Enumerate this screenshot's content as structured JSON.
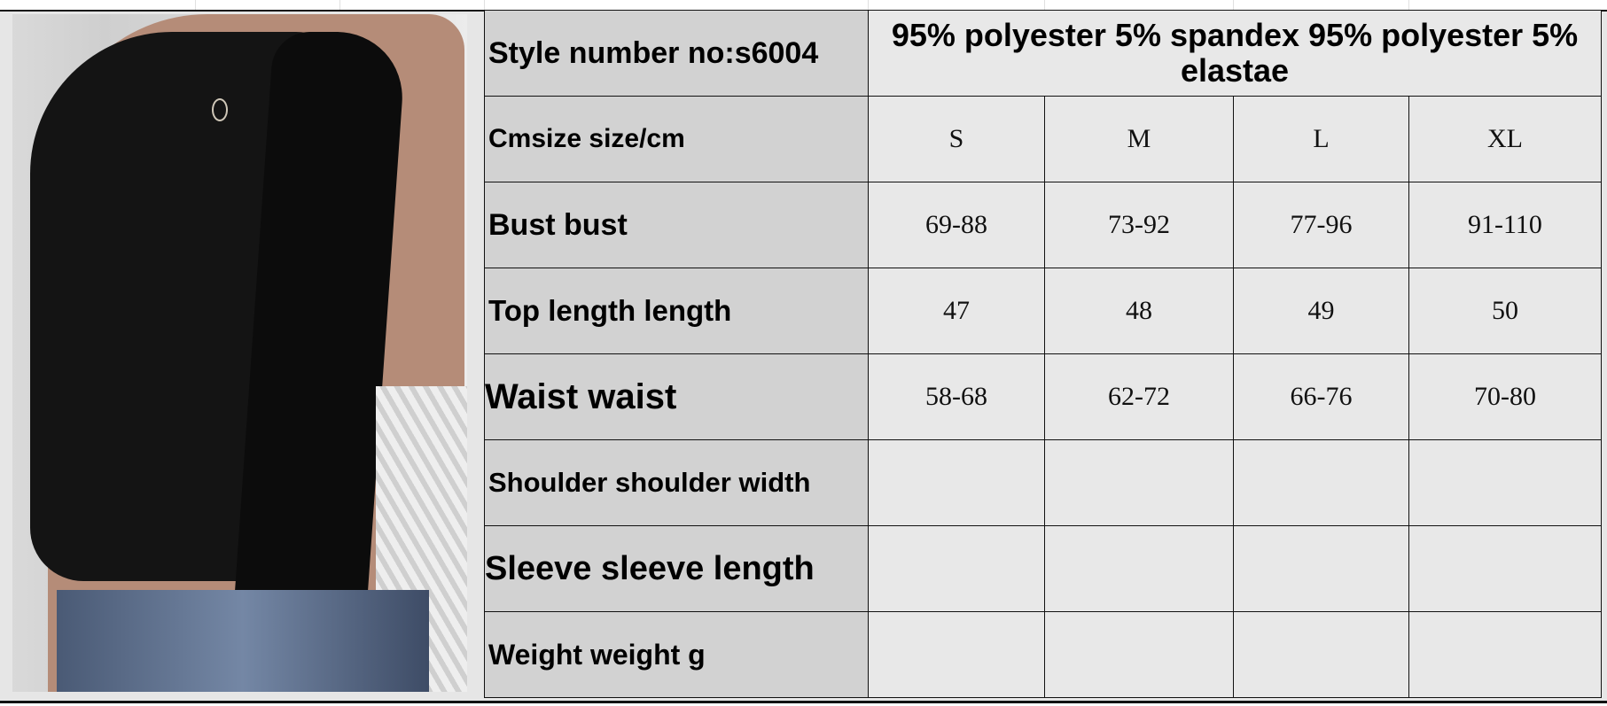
{
  "chart_table": {
    "style_label": "Style number no:s6004",
    "material": "95% polyester 5% spandex 95% polyester 5% elastae",
    "size_label": "Cmsize size/cm",
    "sizes": [
      "S",
      "M",
      "L",
      "XL"
    ],
    "rows": [
      {
        "label": "Bust bust",
        "values": [
          "69-88",
          "73-92",
          "77-96",
          "91-110"
        ]
      },
      {
        "label": "Top length length",
        "values": [
          "47",
          "48",
          "49",
          "50"
        ]
      },
      {
        "label": "Waist waist",
        "values": [
          "58-68",
          "62-72",
          "66-76",
          "70-80"
        ]
      },
      {
        "label": "Shoulder shoulder width",
        "values": [
          "",
          "",
          "",
          ""
        ]
      },
      {
        "label": "Sleeve sleeve length",
        "values": [
          "",
          "",
          "",
          ""
        ]
      },
      {
        "label": "Weight weight g",
        "values": [
          "",
          "",
          "",
          ""
        ]
      }
    ]
  },
  "photo": {
    "subject": "black sleeveless top with side tie"
  }
}
